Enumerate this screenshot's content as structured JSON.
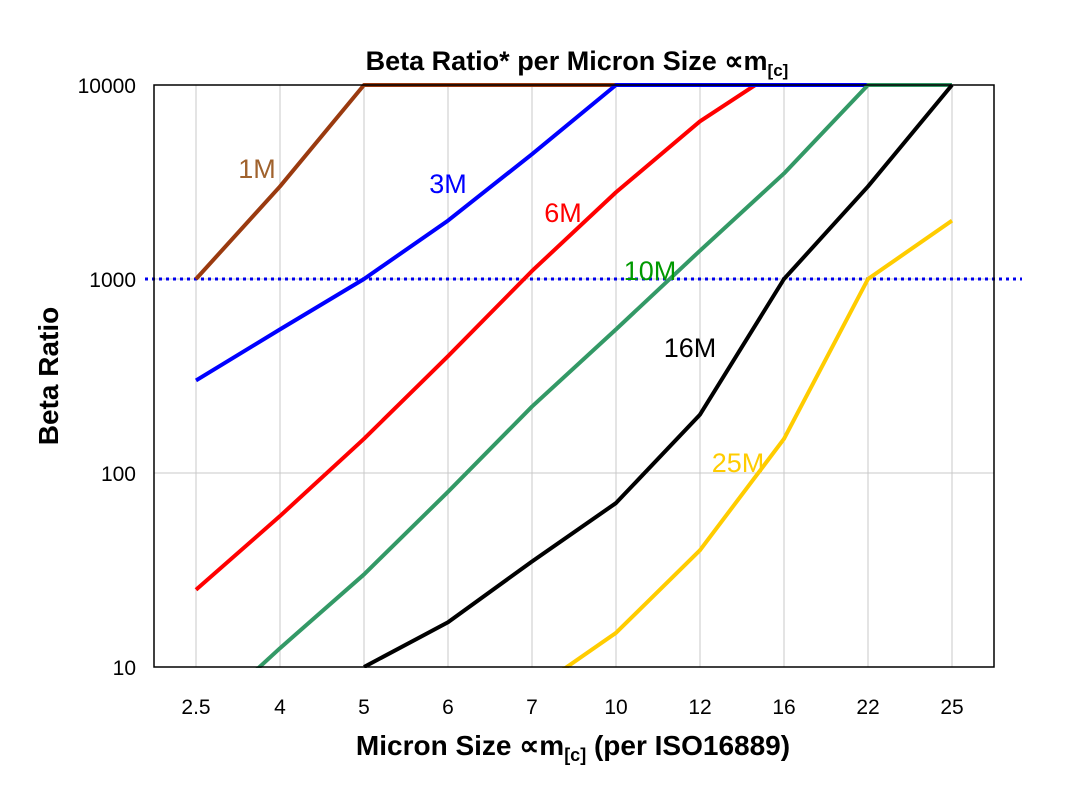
{
  "chart_data": {
    "type": "line",
    "title": "Beta Ratio* per Micron Size ∝m",
    "title_subscript": "[c]",
    "xlabel": "Micron Size ∝m",
    "xlabel_subscript": "[c]",
    "xlabel_suffix": " (per ISO16889)",
    "ylabel": "Beta Ratio",
    "categories": [
      "2.5",
      "4",
      "5",
      "6",
      "7",
      "10",
      "12",
      "16",
      "22",
      "25"
    ],
    "y_scale": "log",
    "ylim": [
      10,
      10000
    ],
    "y_ticks": [
      "10",
      "100",
      "1000",
      "10000"
    ],
    "grid": true,
    "reference_line": {
      "value": 1000,
      "style": "dotted",
      "color": "#0000ee"
    },
    "series": [
      {
        "name": "1M",
        "color": "#9a3a0f",
        "label_color": "#a0622d",
        "values": [
          1000,
          3000,
          10000,
          10000,
          10000,
          10000,
          10000,
          10000,
          10000,
          10000
        ]
      },
      {
        "name": "6M",
        "color": "#ff0000",
        "label_color": "#ff0000",
        "values": [
          25,
          60,
          150,
          400,
          1100,
          2800,
          6500,
          12500,
          12500,
          12500
        ]
      },
      {
        "name": "3M",
        "color": "#0000ff",
        "label_color": "#0000ff",
        "values": [
          300,
          550,
          1000,
          2000,
          4400,
          10000,
          10000,
          10000,
          10000,
          10000
        ]
      },
      {
        "name": "10M",
        "color": "#339966",
        "label_color": "#009900",
        "values": [
          5,
          12.5,
          30,
          80,
          220,
          550,
          1400,
          3500,
          10000,
          10000
        ]
      },
      {
        "name": "16M",
        "color": "#000000",
        "label_color": "#000000",
        "values": [
          null,
          null,
          10,
          17,
          35,
          70,
          200,
          1000,
          3000,
          10000
        ]
      },
      {
        "name": "25M",
        "color": "#ffcc00",
        "label_color": "#ffcc00",
        "values": [
          null,
          null,
          null,
          null,
          7.5,
          15,
          40,
          150,
          1000,
          2000
        ]
      }
    ]
  }
}
